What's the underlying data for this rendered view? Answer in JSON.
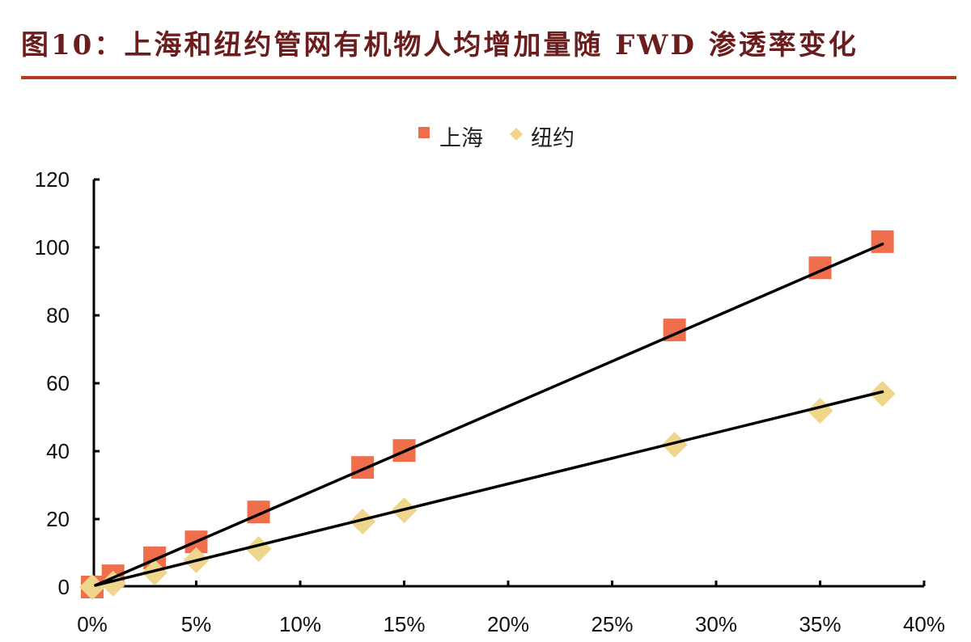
{
  "header": {
    "title": "图10：上海和纽约管网有机物人均增加量随 FWD 渗透率变化"
  },
  "colors": {
    "title": "#6b1d1d",
    "rule": "#b5391f",
    "shanghai": "#ef6e4b",
    "newyork": "#f0d68c",
    "trendline": "#000000"
  },
  "chart_data": {
    "type": "scatter",
    "title": "上海和纽约管网有机物人均增加量随 FWD 渗透率变化",
    "xlabel": "",
    "ylabel": "",
    "xlim": [
      0,
      0.4
    ],
    "ylim": [
      0,
      120
    ],
    "x_ticks": [
      "0%",
      "5%",
      "10%",
      "15%",
      "20%",
      "25%",
      "30%",
      "35%",
      "40%"
    ],
    "y_ticks": [
      "0",
      "20",
      "40",
      "60",
      "80",
      "100",
      "120"
    ],
    "grid": false,
    "legend_position": "top-center",
    "series": [
      {
        "name": "上海",
        "marker": "square",
        "color": "#ef6e4b",
        "x": [
          0.0,
          0.01,
          0.03,
          0.05,
          0.08,
          0.13,
          0.15,
          0.28,
          0.35,
          0.38
        ],
        "y": [
          0,
          3.3,
          8.6,
          13.3,
          22.1,
          35.2,
          40.2,
          75.7,
          94.0,
          101.7
        ],
        "trendline": {
          "x": [
            0.0,
            0.38
          ],
          "y": [
            0.5,
            101
          ]
        }
      },
      {
        "name": "纽约",
        "marker": "diamond",
        "color": "#f0d68c",
        "x": [
          0.0,
          0.01,
          0.03,
          0.05,
          0.08,
          0.13,
          0.15,
          0.28,
          0.35,
          0.38
        ],
        "y": [
          0,
          1.0,
          4.3,
          7.9,
          11.2,
          19.3,
          22.6,
          41.9,
          51.9,
          56.9
        ],
        "trendline": {
          "x": [
            0.0,
            0.38
          ],
          "y": [
            0.5,
            57.5
          ]
        }
      }
    ]
  }
}
